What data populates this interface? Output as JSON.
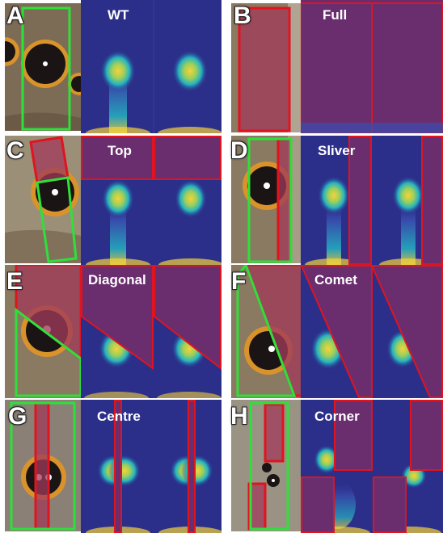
{
  "panels": [
    {
      "letter": "A",
      "title": "WT"
    },
    {
      "letter": "B",
      "title": "Full"
    },
    {
      "letter": "C",
      "title": "Top"
    },
    {
      "letter": "D",
      "title": "Sliver"
    },
    {
      "letter": "E",
      "title": "Diagonal"
    },
    {
      "letter": "F",
      "title": "Comet"
    },
    {
      "letter": "G",
      "title": "Centre"
    },
    {
      "letter": "H",
      "title": "Corner"
    }
  ],
  "colors": {
    "simulation_background": "#2b2f8a",
    "morphogen_low": "#3a4fb0",
    "morphogen_mid": "#24b3c2",
    "morphogen_high": "#f5d23a",
    "eyespot_ring": "#d9932a",
    "eyespot_center": "#1a1414",
    "wing_tissue": "#8a7a62",
    "cautery_outline": "#e0141f",
    "cautery_fill": "#a03a5a",
    "wing_outline": "#2ee03a"
  }
}
